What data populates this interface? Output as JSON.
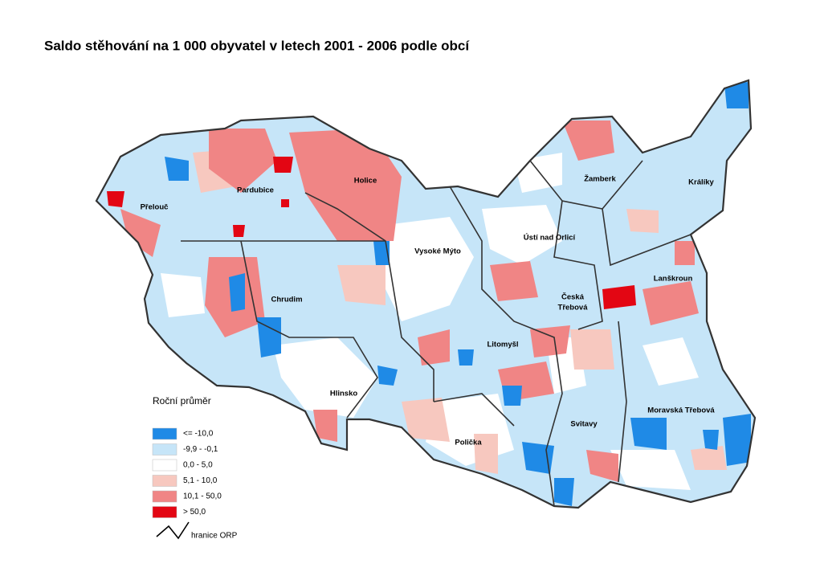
{
  "title": "Saldo stěhování na 1 000 obyvatel v letech 2001 - 2006 podle obcí",
  "legend": {
    "title": "Roční průměr",
    "items": [
      {
        "label": "<= -10,0",
        "color": "#1f8ae6"
      },
      {
        "label": "-9,9 - -0,1",
        "color": "#c6e5f8"
      },
      {
        "label": "0,0 - 5,0",
        "color": "#ffffff"
      },
      {
        "label": "5,1 - 10,0",
        "color": "#f7c8bf"
      },
      {
        "label": "10,1 - 50,0",
        "color": "#f08585"
      },
      {
        "label": "> 50,0",
        "color": "#e30613"
      }
    ],
    "border_label": "hranice ORP"
  },
  "labels": [
    {
      "lines": [
        "Pardubice"
      ]
    },
    {
      "lines": [
        "Přelouč"
      ]
    },
    {
      "lines": [
        "Holice"
      ]
    },
    {
      "lines": [
        "Vysoké Mýto"
      ]
    },
    {
      "lines": [
        "Chrudim"
      ]
    },
    {
      "lines": [
        "Hlinsko"
      ]
    },
    {
      "lines": [
        "Litomyšl"
      ]
    },
    {
      "lines": [
        "Polička"
      ]
    },
    {
      "lines": [
        "Svitavy"
      ]
    },
    {
      "lines": [
        "Žamberk"
      ]
    },
    {
      "lines": [
        "Králíky"
      ]
    },
    {
      "lines": [
        "Ústí nad Orlicí"
      ]
    },
    {
      "lines": [
        "Česká",
        "Třebová"
      ]
    },
    {
      "lines": [
        "Lanškroun"
      ]
    },
    {
      "lines": [
        "Moravská Třebová"
      ]
    }
  ]
}
